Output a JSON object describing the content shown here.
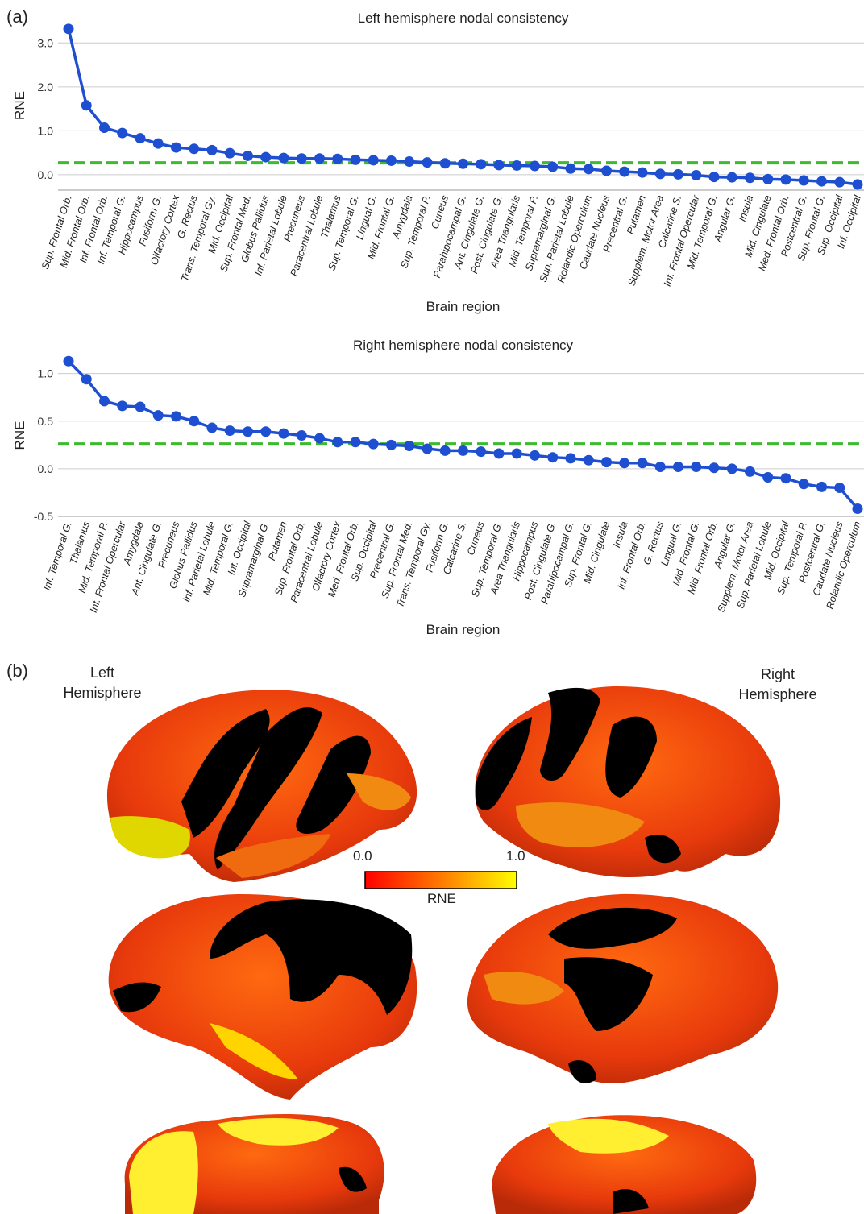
{
  "panels": {
    "a": "(a)",
    "b": "(b)"
  },
  "colors": {
    "line": "#1f4fd1",
    "threshold": "#3dbb2e",
    "grid": "#cccccc"
  },
  "chart_data": [
    {
      "type": "line",
      "title": "Left hemisphere nodal consistency",
      "xlabel": "Brain region",
      "ylabel": "RNE",
      "ylim": [
        -0.35,
        3.5
      ],
      "yticks": [
        0.0,
        1.0,
        2.0,
        3.0
      ],
      "ytick_labels": [
        "0.0",
        "1.0",
        "2.0",
        "3.0"
      ],
      "threshold": 0.27,
      "grid": "horizontal",
      "categories": [
        "Sup. Frontal Orb.",
        "Mid. Frontal  Orb.",
        "Inf. Frontal Orb.",
        "Inf. Temporal G.",
        "Hippocampus",
        "Fusiform G.",
        "Olfactory Cortex",
        "G. Rectus",
        "Trans. Temporal Gy.",
        "Mid. Occipital",
        "Sup. Frontal Med.",
        "Globus Pallidus",
        "Inf. Parietal Lobule",
        "Precuneus",
        "Paracentral Lobule",
        "Thalamus",
        "Sup. Temporal G.",
        "Lingual G.",
        "Mid. Frontal  G.",
        "Amygdala",
        "Sup. Temporal P.",
        "Cuneus",
        "Parahipocampal G.",
        "Ant. Cingulate G.",
        "Post. Cingulate G.",
        "Area Triangularis",
        "Mid. Temporal P.",
        "Supramarginal G.",
        "Sup. Parietal Lobule",
        "Rolandic Operculum",
        "Caudate Nucleus",
        "Precentral G.",
        "Putamen",
        "Supplem. Motor Area",
        "Calcarine S.",
        "Inf. Frontal Opercular",
        "Mid. Temporal G.",
        "Angular G.",
        "Insula",
        "Mid. Cingulate",
        "Med. Frontal Orb.",
        "Postcentral G.",
        "Sup. Frontal G.",
        "Sup. Occipital",
        "Inf. Occipital"
      ],
      "values": [
        3.32,
        1.58,
        1.07,
        0.95,
        0.83,
        0.71,
        0.62,
        0.59,
        0.56,
        0.49,
        0.43,
        0.4,
        0.38,
        0.37,
        0.37,
        0.36,
        0.34,
        0.33,
        0.32,
        0.3,
        0.28,
        0.26,
        0.25,
        0.24,
        0.22,
        0.21,
        0.2,
        0.18,
        0.14,
        0.13,
        0.09,
        0.07,
        0.05,
        0.02,
        0.01,
        -0.01,
        -0.05,
        -0.06,
        -0.07,
        -0.1,
        -0.11,
        -0.13,
        -0.15,
        -0.17,
        -0.22
      ]
    },
    {
      "type": "line",
      "title": "Right hemisphere nodal consistency",
      "xlabel": "Brain region",
      "ylabel": "RNE",
      "ylim": [
        -0.5,
        1.2
      ],
      "yticks": [
        -0.5,
        0.0,
        0.5,
        1.0
      ],
      "ytick_labels": [
        "-0.5",
        "0.0",
        "0.5",
        "1.0"
      ],
      "threshold": 0.26,
      "grid": "horizontal",
      "categories": [
        "Inf. Temporal G.",
        "Thalamus",
        "Mid. Temporal P.",
        "Inf. Frontal Opercular",
        "Amygdala",
        "Ant. Cingulate G.",
        "Precuneus",
        "Globus Pallidus",
        "Inf. Parietal Lobule",
        "Mid. Temporal G.",
        "Inf. Occipital",
        "Supramarginal G.",
        "Putamen",
        "Sup. Frontal Orb.",
        "Paracentral Lobule",
        "Olfactory Cortex",
        "Med. Frontal Orb.",
        "Sup. Occipital",
        "Precentral G.",
        "Sup. Frontal Med.",
        "Trans. Temporal Gy.",
        "Fusiform G.",
        "Calcarine S.",
        "Cuneus",
        "Sup. Temporal G.",
        "Area Triangularis",
        "Hippocampus",
        "Post. Cingulate G.",
        "Parahipocampal G.",
        "Sup. Frontal G.",
        "Mid. Cingulate",
        "Insula",
        "Inf. Frontal Orb.",
        "G. Rectus",
        "Lingual G.",
        "Mid. Frontal  G.",
        "Mid. Frontal  Orb.",
        "Angular G.",
        "Supplem. Motor Area",
        "Sup. Parietal Lobule",
        "Mid. Occipital",
        "Sup. Temporal P.",
        "Postcentral G.",
        "Caudate Nucleus",
        "Rolandic Operculum"
      ],
      "values": [
        1.13,
        0.94,
        0.71,
        0.66,
        0.65,
        0.56,
        0.55,
        0.5,
        0.43,
        0.4,
        0.39,
        0.39,
        0.37,
        0.35,
        0.32,
        0.28,
        0.28,
        0.26,
        0.25,
        0.24,
        0.21,
        0.19,
        0.19,
        0.18,
        0.16,
        0.16,
        0.14,
        0.12,
        0.11,
        0.09,
        0.07,
        0.06,
        0.06,
        0.02,
        0.02,
        0.02,
        0.01,
        0.0,
        -0.03,
        -0.09,
        -0.1,
        -0.16,
        -0.19,
        -0.2,
        -0.42
      ]
    }
  ],
  "brain_maps": {
    "left_label": [
      "Left",
      "Hemisphere"
    ],
    "right_label": [
      "Right",
      "Hemisphere"
    ],
    "colorbar": {
      "min_label": "0.0",
      "max_label": "1.0",
      "label": "RNE",
      "stops": [
        "#ff0000",
        "#ff7a00",
        "#ffff00"
      ]
    }
  }
}
